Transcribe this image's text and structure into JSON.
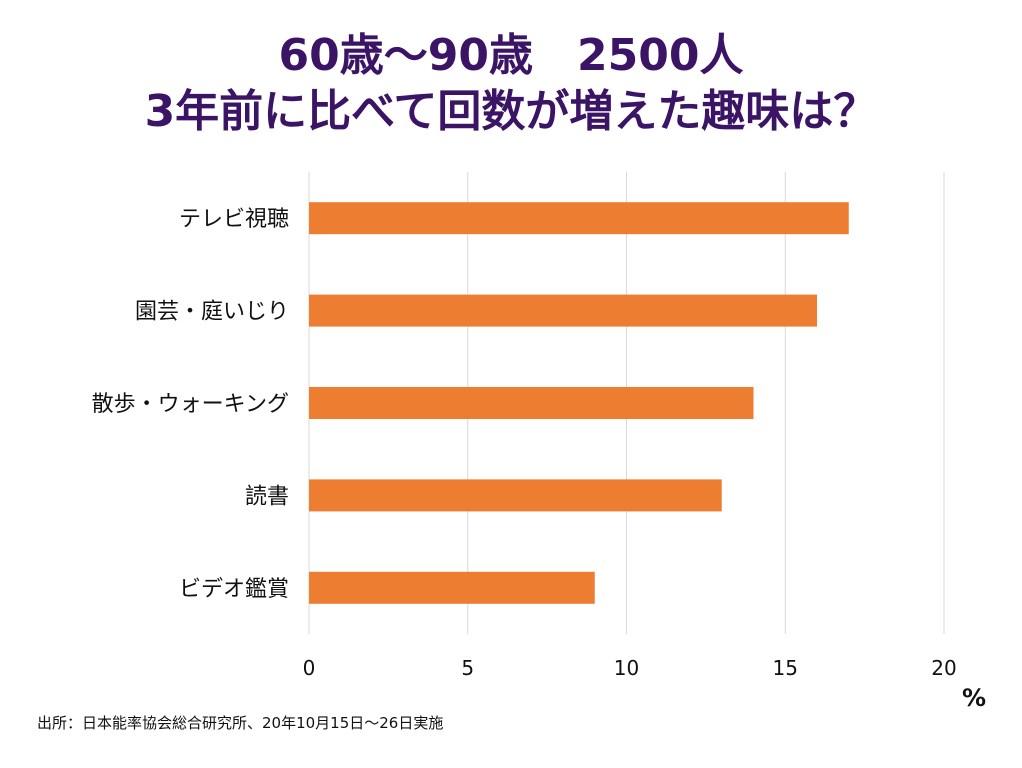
{
  "title": {
    "line1": "60歳～90歳　2500人",
    "line2": "3年前に比べて回数が増えた趣味は？"
  },
  "chart_data": {
    "type": "bar",
    "orientation": "horizontal",
    "title": "60歳～90歳　2500人 3年前に比べて回数が増えた趣味は？",
    "categories": [
      "テレビ視聴",
      "園芸・庭いじり",
      "散歩・ウォーキング",
      "読書",
      "ビデオ鑑賞"
    ],
    "values": [
      17,
      16,
      14,
      13,
      9
    ],
    "xlabel": "%",
    "ylabel": "",
    "xlim": [
      0,
      20
    ],
    "xticks": [
      0,
      5,
      10,
      15,
      20
    ],
    "grid": true,
    "legend": "none",
    "bar_color": "#ed7d31",
    "grid_color": "#d9d9d9"
  },
  "unit_label": "%",
  "source": "出所：日本能率協会総合研究所、20年10月15日～26日実施"
}
